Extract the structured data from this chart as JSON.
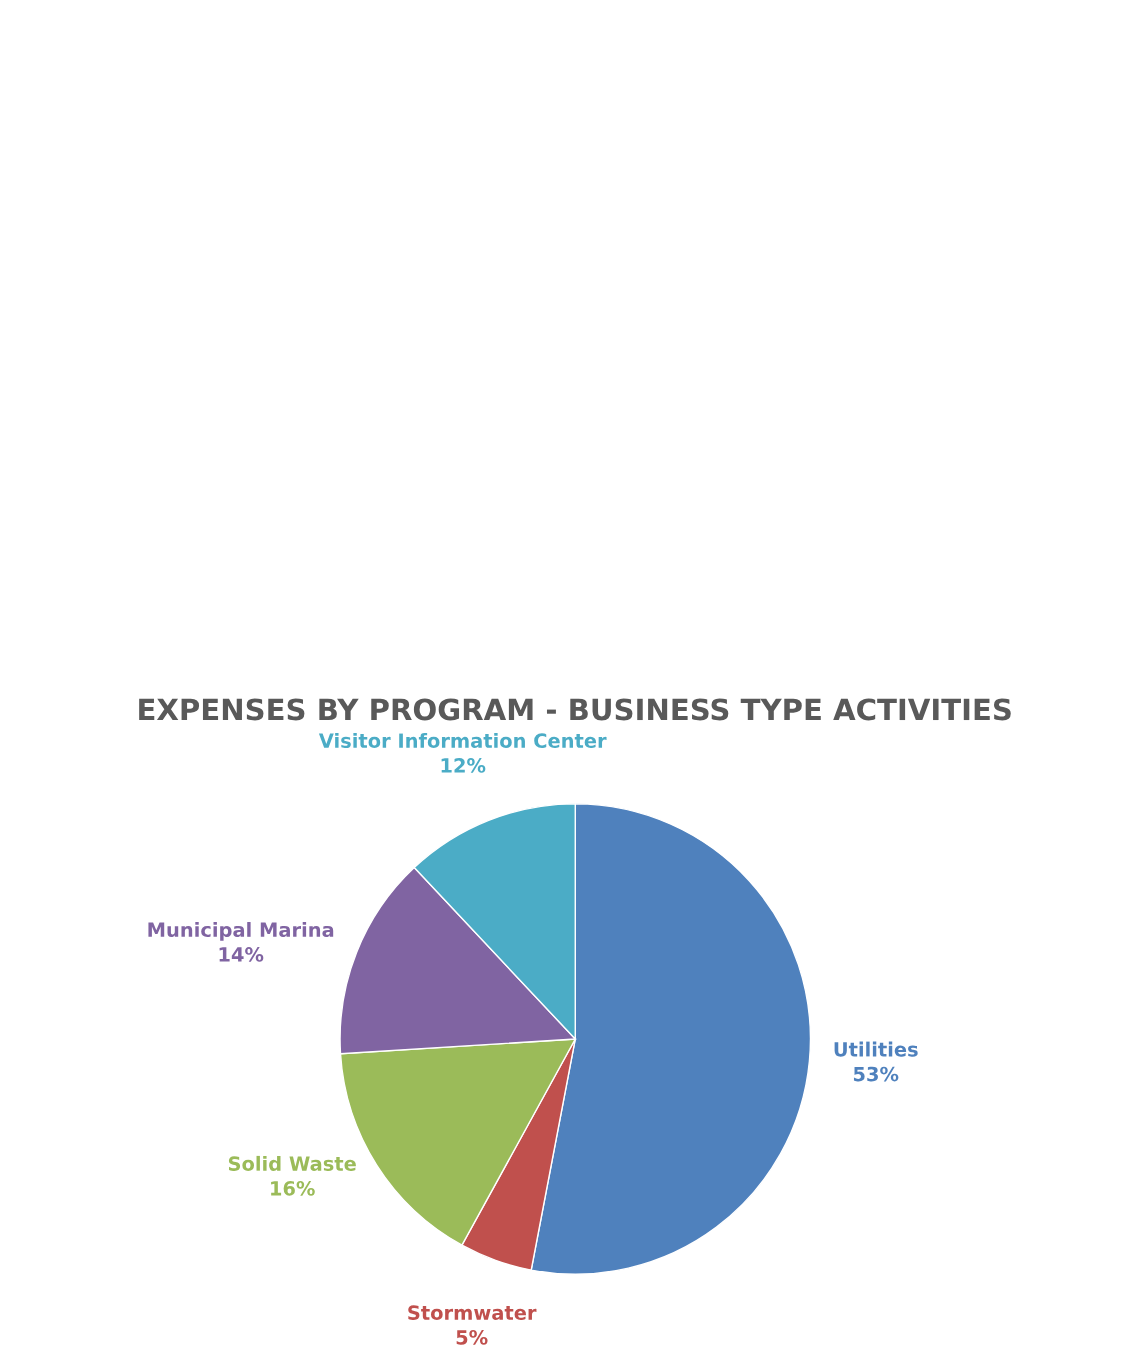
{
  "chart_data": {
    "type": "pie",
    "title": "EXPENSES BY PROGRAM - BUSINESS TYPE ACTIVITIES",
    "categories": [
      "Utilities",
      "Stormwater",
      "Solid Waste",
      "Municipal Marina",
      "Visitor Information Center"
    ],
    "values": [
      53,
      5,
      16,
      14,
      12
    ],
    "value_labels": [
      "53%",
      "5%",
      "16%",
      "14%",
      "12%"
    ],
    "colors": [
      "#4f81bd",
      "#c0504d",
      "#9bbb59",
      "#8064a2",
      "#4bacc6"
    ],
    "legend": false
  }
}
